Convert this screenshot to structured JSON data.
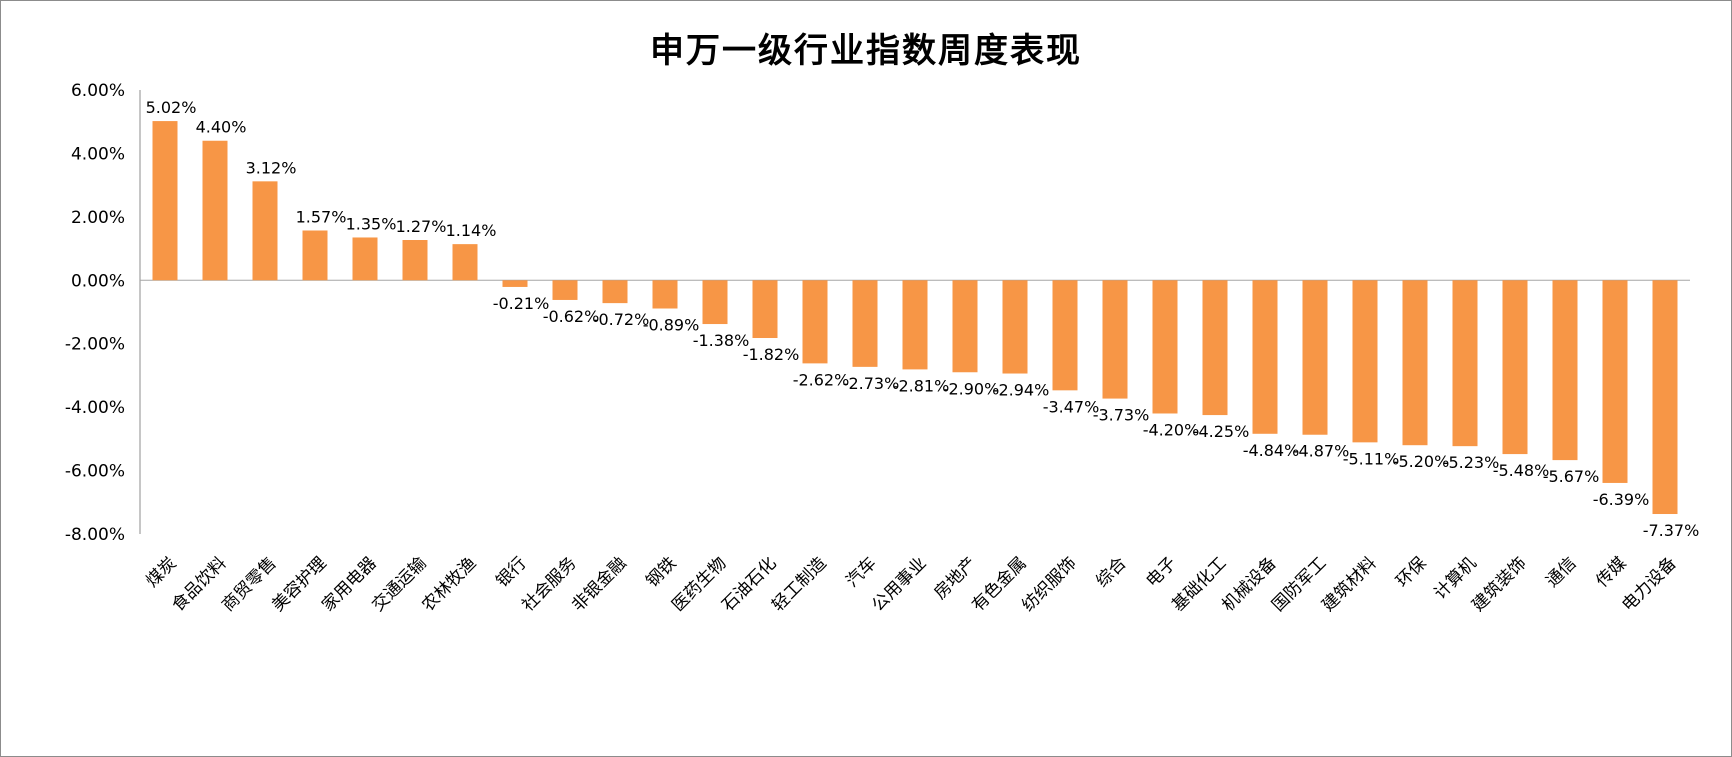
{
  "chart_data": {
    "type": "bar",
    "title": "申万一级行业指数周度表现",
    "xlabel": "",
    "ylabel": "",
    "ylim": [
      -8,
      6
    ],
    "yticks": [
      6,
      4,
      2,
      0,
      -2,
      -4,
      -6,
      -8
    ],
    "ytick_labels": [
      "6.00%",
      "4.00%",
      "2.00%",
      "0.00%",
      "-2.00%",
      "-4.00%",
      "-6.00%",
      "-8.00%"
    ],
    "bar_color": "#F79646",
    "grid": false,
    "legend": "none",
    "categories": [
      "煤炭",
      "食品饮料",
      "商贸零售",
      "美容护理",
      "家用电器",
      "交通运输",
      "农林牧渔",
      "银行",
      "社会服务",
      "非银金融",
      "钢铁",
      "医药生物",
      "石油石化",
      "轻工制造",
      "汽车",
      "公用事业",
      "房地产",
      "有色金属",
      "纺织服饰",
      "综合",
      "电子",
      "基础化工",
      "机械设备",
      "国防军工",
      "建筑材料",
      "环保",
      "计算机",
      "建筑装饰",
      "通信",
      "传媒",
      "电力设备"
    ],
    "values": [
      5.02,
      4.4,
      3.12,
      1.57,
      1.35,
      1.27,
      1.14,
      -0.21,
      -0.62,
      -0.72,
      -0.89,
      -1.38,
      -1.82,
      -2.62,
      -2.73,
      -2.81,
      -2.9,
      -2.94,
      -3.47,
      -3.73,
      -4.2,
      -4.25,
      -4.84,
      -4.87,
      -5.11,
      -5.2,
      -5.23,
      -5.48,
      -5.67,
      -6.39,
      -7.37
    ],
    "value_labels": [
      "5.02%",
      "4.40%",
      "3.12%",
      "1.57%",
      "1.35%",
      "1.27%",
      "1.14%",
      "-0.21%",
      "-0.62%",
      "-0.72%",
      "-0.89%",
      "-1.38%",
      "-1.82%",
      "-2.62%",
      "-2.73%",
      "-2.81%",
      "-2.90%",
      "-2.94%",
      "-3.47%",
      "-3.73%",
      "-4.20%",
      "-4.25%",
      "-4.84%",
      "-4.87%",
      "-5.11%",
      "-5.20%",
      "-5.23%",
      "-5.48%",
      "-5.67%",
      "-6.39%",
      "-7.37%"
    ]
  }
}
